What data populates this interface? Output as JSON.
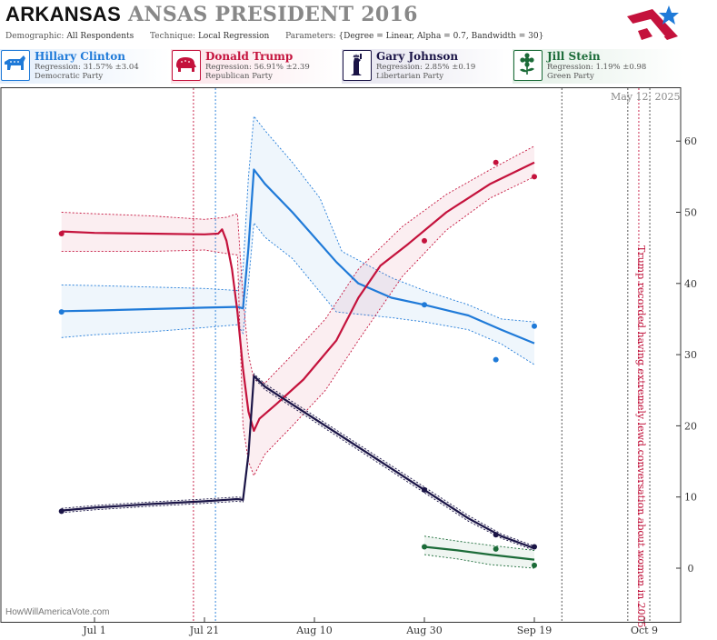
{
  "header": {
    "state": "ARKANSAS",
    "title_rest": "ANSAS PRESIDENT 2016",
    "demographic_label": "Demographic:",
    "demographic_value": "All Respondents",
    "technique_label": "Technique:",
    "technique_value": "Local Regression",
    "parameters_label": "Parameters:",
    "parameters_value": "{Degree = Linear, Alpha = 0.7, Bandwidth = 30}"
  },
  "candidates": [
    {
      "name": "Hillary Clinton",
      "regression": "Regression: 31.57% ±3.04",
      "party": "Democratic Party",
      "color": "#1f7ad8",
      "icon": "donkey-icon"
    },
    {
      "name": "Donald Trump",
      "regression": "Regression: 56.91% ±2.39",
      "party": "Republican Party",
      "color": "#c4123c",
      "icon": "elephant-icon"
    },
    {
      "name": "Gary Johnson",
      "regression": "Regression: 2.85% ±0.19",
      "party": "Libertarian Party",
      "color": "#1a1446",
      "icon": "liberty-statue-icon"
    },
    {
      "name": "Jill Stein",
      "regression": "Regression: 1.19% ±0.98",
      "party": "Green Party",
      "color": "#1b6b38",
      "icon": "flower-icon"
    }
  ],
  "datestamp": "May 12, 2025",
  "annotation": "Trump recorded having extremely lewd conversation about women in 2005",
  "watermark": "HowWillAmericaVote.com",
  "chart_data": {
    "type": "line",
    "x_ticks": [
      "Jul 1",
      "Jul 21",
      "Aug 10",
      "Aug 30",
      "Sep 19",
      "Oct 9"
    ],
    "x_tick_days": [
      0,
      20,
      40,
      60,
      80,
      100
    ],
    "ylim": [
      -7,
      67
    ],
    "y_ticks": [
      0,
      10,
      20,
      30,
      40,
      50,
      60
    ],
    "grid": false,
    "vlines": [
      {
        "day": 18,
        "color": "#c4123c"
      },
      {
        "day": 22,
        "color": "#1f7ad8"
      },
      {
        "day": 85,
        "color": "#444444"
      },
      {
        "day": 97,
        "color": "#444444"
      },
      {
        "day": 99,
        "color": "#c4123c"
      },
      {
        "day": 101,
        "color": "#444444"
      }
    ],
    "series": [
      {
        "name": "Hillary Clinton",
        "color": "#1f7ad8",
        "line": [
          [
            -6,
            36.1
          ],
          [
            0,
            36.2
          ],
          [
            10,
            36.4
          ],
          [
            20,
            36.6
          ],
          [
            26,
            36.7
          ],
          [
            27,
            36.5
          ],
          [
            28,
            45
          ],
          [
            29,
            56
          ],
          [
            31,
            54
          ],
          [
            36,
            50
          ],
          [
            44,
            43
          ],
          [
            48,
            40
          ],
          [
            54,
            38
          ],
          [
            60,
            37
          ],
          [
            68,
            35.5
          ],
          [
            74,
            33.5
          ],
          [
            80,
            31.6
          ]
        ],
        "upper": [
          [
            -6,
            39.8
          ],
          [
            0,
            39.7
          ],
          [
            10,
            39.5
          ],
          [
            20,
            39.3
          ],
          [
            26,
            39
          ],
          [
            27,
            42
          ],
          [
            28,
            55
          ],
          [
            29,
            63.5
          ],
          [
            31,
            61.5
          ],
          [
            36,
            57
          ],
          [
            41,
            52
          ],
          [
            45,
            44.5
          ],
          [
            54,
            40.8
          ],
          [
            60,
            39
          ],
          [
            68,
            37
          ],
          [
            74,
            35
          ],
          [
            80,
            34.6
          ]
        ],
        "lower": [
          [
            -6,
            32.4
          ],
          [
            0,
            32.8
          ],
          [
            10,
            33.2
          ],
          [
            20,
            33.8
          ],
          [
            26,
            34.2
          ],
          [
            27,
            33
          ],
          [
            28,
            40
          ],
          [
            29,
            48.5
          ],
          [
            31,
            46.5
          ],
          [
            36,
            43.5
          ],
          [
            44,
            36
          ],
          [
            54,
            35.2
          ],
          [
            60,
            34.6
          ],
          [
            68,
            33.5
          ],
          [
            74,
            31.5
          ],
          [
            80,
            28.6
          ]
        ],
        "points": [
          [
            -6,
            36
          ],
          [
            60,
            37
          ],
          [
            73,
            29.3
          ],
          [
            80,
            34
          ]
        ]
      },
      {
        "name": "Donald Trump",
        "color": "#c4123c",
        "line": [
          [
            -6,
            47.3
          ],
          [
            0,
            47.1
          ],
          [
            10,
            47
          ],
          [
            20,
            46.9
          ],
          [
            22.5,
            47
          ],
          [
            23.2,
            47.6
          ],
          [
            24,
            46
          ],
          [
            25,
            42
          ],
          [
            26,
            36
          ],
          [
            27,
            28
          ],
          [
            28,
            22
          ],
          [
            29,
            19.3
          ],
          [
            30,
            21
          ],
          [
            33,
            23
          ],
          [
            38,
            26.5
          ],
          [
            44,
            32
          ],
          [
            48,
            38
          ],
          [
            52,
            42.5
          ],
          [
            57,
            45.5
          ],
          [
            64,
            50
          ],
          [
            72,
            54
          ],
          [
            80,
            57
          ]
        ],
        "upper": [
          [
            -6,
            50
          ],
          [
            0,
            49.8
          ],
          [
            10,
            49.5
          ],
          [
            20,
            49
          ],
          [
            24,
            49.3
          ],
          [
            26,
            49.8
          ],
          [
            27,
            38
          ],
          [
            28,
            30
          ],
          [
            29,
            26.5
          ],
          [
            31,
            26
          ],
          [
            36,
            30
          ],
          [
            42,
            35
          ],
          [
            48,
            42
          ],
          [
            56,
            48
          ],
          [
            64,
            52.5
          ],
          [
            72,
            56
          ],
          [
            80,
            59.3
          ]
        ],
        "lower": [
          [
            -6,
            44.5
          ],
          [
            0,
            44.5
          ],
          [
            10,
            44.5
          ],
          [
            20,
            44.7
          ],
          [
            24,
            44.2
          ],
          [
            26,
            44
          ],
          [
            27,
            20
          ],
          [
            28,
            15
          ],
          [
            29,
            13
          ],
          [
            31,
            16
          ],
          [
            36,
            20
          ],
          [
            42,
            25
          ],
          [
            48,
            32
          ],
          [
            56,
            41
          ],
          [
            64,
            47.5
          ],
          [
            72,
            52
          ],
          [
            80,
            55
          ]
        ],
        "points": [
          [
            -6,
            47
          ],
          [
            60,
            46
          ],
          [
            73,
            57
          ],
          [
            80,
            55
          ]
        ]
      },
      {
        "name": "Gary Johnson",
        "color": "#1a1446",
        "line": [
          [
            -6,
            8.1
          ],
          [
            0,
            8.5
          ],
          [
            10,
            9
          ],
          [
            20,
            9.4
          ],
          [
            26,
            9.7
          ],
          [
            27,
            9.6
          ],
          [
            28,
            16
          ],
          [
            29,
            27
          ],
          [
            31,
            25.5
          ],
          [
            36,
            23
          ],
          [
            44,
            19
          ],
          [
            52,
            15
          ],
          [
            60,
            11
          ],
          [
            68,
            7
          ],
          [
            74,
            4.5
          ],
          [
            80,
            2.8
          ]
        ],
        "upper": [
          [
            -6,
            8.4
          ],
          [
            0,
            8.8
          ],
          [
            10,
            9.3
          ],
          [
            20,
            9.7
          ],
          [
            26,
            10
          ],
          [
            27,
            9.9
          ],
          [
            28,
            16.5
          ],
          [
            29,
            27.3
          ],
          [
            31,
            25.9
          ],
          [
            36,
            23.4
          ],
          [
            44,
            19.4
          ],
          [
            52,
            15.4
          ],
          [
            60,
            11.4
          ],
          [
            68,
            7.4
          ],
          [
            74,
            4.8
          ],
          [
            80,
            3.1
          ]
        ],
        "lower": [
          [
            -6,
            7.8
          ],
          [
            0,
            8.2
          ],
          [
            10,
            8.7
          ],
          [
            20,
            9.1
          ],
          [
            26,
            9.4
          ],
          [
            27,
            9.3
          ],
          [
            28,
            15.5
          ],
          [
            29,
            26.7
          ],
          [
            31,
            25.1
          ],
          [
            36,
            22.6
          ],
          [
            44,
            18.6
          ],
          [
            52,
            14.6
          ],
          [
            60,
            10.6
          ],
          [
            68,
            6.6
          ],
          [
            74,
            4.2
          ],
          [
            80,
            2.5
          ]
        ],
        "points": [
          [
            -6,
            8
          ],
          [
            60,
            11
          ],
          [
            73,
            4.7
          ],
          [
            80,
            3
          ]
        ]
      },
      {
        "name": "Jill Stein",
        "color": "#1b6b38",
        "line": [
          [
            60,
            3
          ],
          [
            66,
            2.5
          ],
          [
            72,
            1.9
          ],
          [
            80,
            1.2
          ]
        ],
        "upper": [
          [
            60,
            4.5
          ],
          [
            66,
            3.8
          ],
          [
            72,
            3.2
          ],
          [
            80,
            2.5
          ]
        ],
        "lower": [
          [
            60,
            1.9
          ],
          [
            66,
            1.3
          ],
          [
            72,
            0.5
          ],
          [
            80,
            0
          ]
        ],
        "points": [
          [
            60,
            3
          ],
          [
            73,
            2.7
          ],
          [
            80,
            0.4
          ]
        ]
      }
    ]
  }
}
